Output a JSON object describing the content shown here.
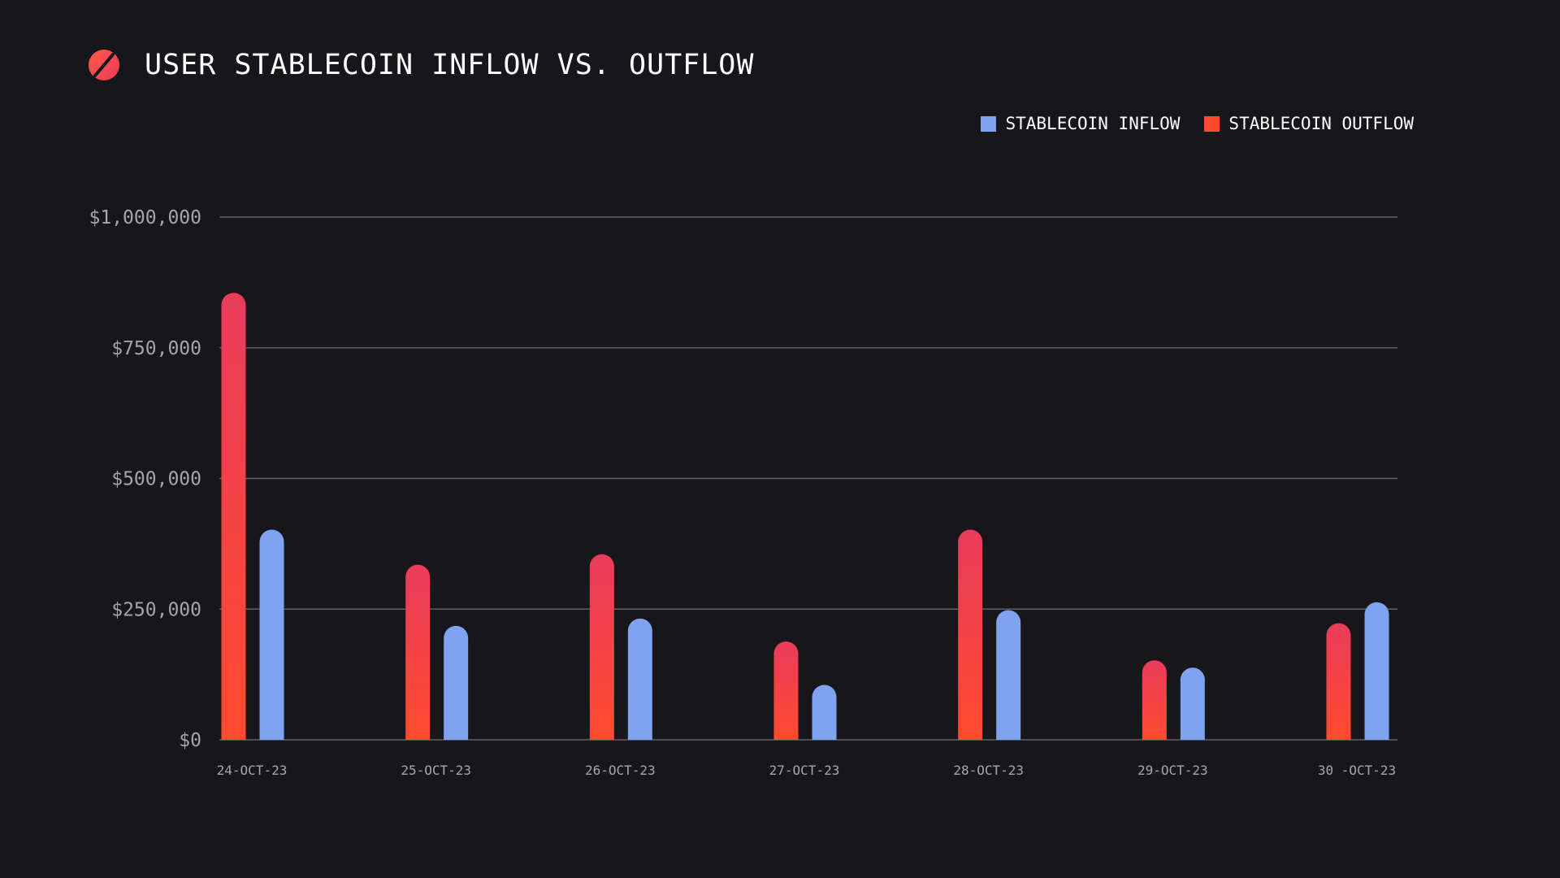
{
  "chart_data": {
    "type": "bar",
    "title": "USER STABLECOIN INFLOW VS. OUTFLOW",
    "xlabel": "",
    "ylabel": "",
    "ylim": [
      0,
      1000000
    ],
    "yticks": [
      0,
      250000,
      500000,
      750000,
      1000000
    ],
    "ytick_labels": [
      "$0",
      "$250,000",
      "$500,000",
      "$750,000",
      "$1,000,000"
    ],
    "grid": true,
    "legend_position": "top-right",
    "categories": [
      "24-OCT-23",
      "25-OCT-23",
      "26-OCT-23",
      "27-OCT-23",
      "28-OCT-23",
      "29-OCT-23",
      "30 -OCT-23"
    ],
    "series": [
      {
        "name": "STABLECOIN OUTFLOW",
        "key": "outflow",
        "color": "#ff4a2e",
        "color_top": "#ea3b5c",
        "values": [
          855000,
          335000,
          355000,
          188000,
          402000,
          152000,
          223000
        ]
      },
      {
        "name": "STABLECOIN INFLOW",
        "key": "inflow",
        "color": "#7fa3f0",
        "values": [
          402000,
          218000,
          232000,
          105000,
          248000,
          138000,
          263000
        ]
      }
    ]
  },
  "legend": {
    "inflow_label": "STABLECOIN INFLOW",
    "outflow_label": "STABLECOIN OUTFLOW",
    "inflow_color": "#7fa3f0",
    "outflow_color": "#ff4a2e"
  },
  "header": {
    "logo_icon": "slashed-circle-icon",
    "logo_color": "#ff4a4a"
  }
}
